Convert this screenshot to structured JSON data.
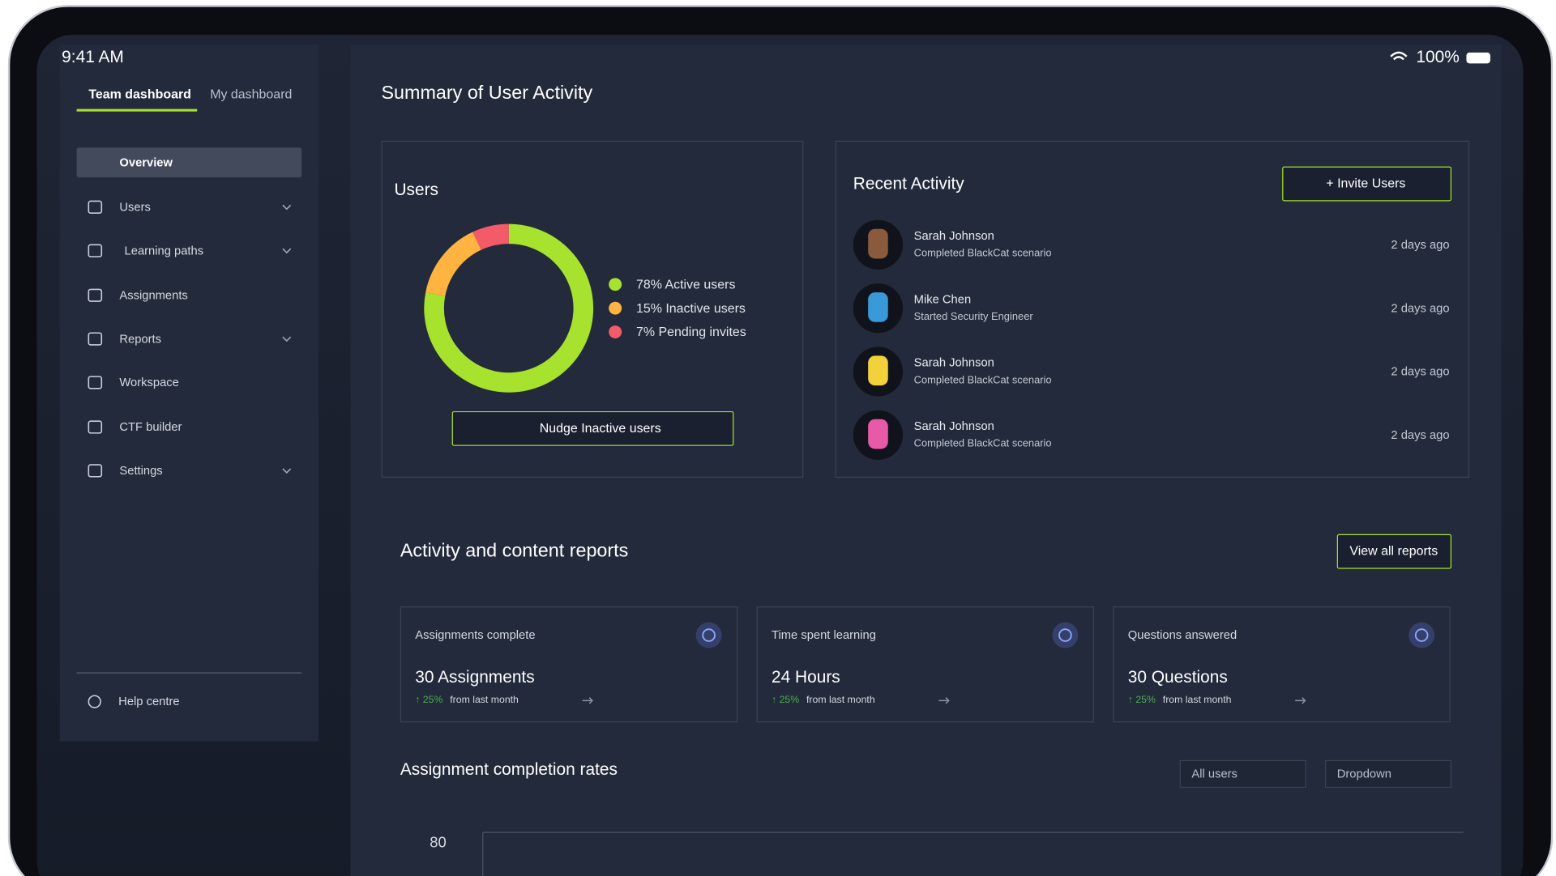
{
  "status": {
    "time": "9:41 AM",
    "battery": "100%"
  },
  "sidebar": {
    "tabs": [
      "Team dashboard",
      "My dashboard"
    ],
    "nav": [
      {
        "label": "Overview",
        "expandable": false
      },
      {
        "label": "Users",
        "expandable": true
      },
      {
        "label": "Learning paths",
        "expandable": true
      },
      {
        "label": "Assignments",
        "expandable": false
      },
      {
        "label": "Reports",
        "expandable": true
      },
      {
        "label": "Workspace",
        "expandable": false
      },
      {
        "label": "CTF builder",
        "expandable": false
      },
      {
        "label": "Settings",
        "expandable": true
      }
    ],
    "help": "Help centre"
  },
  "main": {
    "title": "Summary of User Activity"
  },
  "users": {
    "title": "Users",
    "segments": [
      {
        "label": "78% Active users",
        "value": 78,
        "color": "#a6e22e"
      },
      {
        "label": "15% Inactive users",
        "value": 15,
        "color": "#ffb340"
      },
      {
        "label": "7% Pending invites",
        "value": 7,
        "color": "#f45b69"
      }
    ],
    "button": "Nudge Inactive users"
  },
  "recent": {
    "title": "Recent Activity",
    "button": "+ Invite Users",
    "items": [
      {
        "name": "Sarah Johnson",
        "action": "Completed BlackCat scenario",
        "time": "2 days ago"
      },
      {
        "name": "Mike Chen",
        "action": "Started Security Engineer",
        "time": "2 days ago"
      },
      {
        "name": "Sarah Johnson",
        "action": "Completed BlackCat scenario",
        "time": "2 days ago"
      },
      {
        "name": "Sarah Johnson",
        "action": "Completed BlackCat scenario",
        "time": "2 days ago"
      }
    ]
  },
  "reports": {
    "title": "Activity and content reports",
    "button": "View all reports",
    "cards": [
      {
        "label": "Assignments complete",
        "value": "30 Assignments",
        "change": "↑ 25%",
        "note": "from last month"
      },
      {
        "label": "Time spent learning",
        "value": "24 Hours",
        "change": "↑ 25%",
        "note": "from last month"
      },
      {
        "label": "Questions answered",
        "value": "30 Questions",
        "change": "↑ 25%",
        "note": "from last month"
      }
    ]
  },
  "completion": {
    "title": "Assignment completion rates",
    "filters": [
      "All users",
      "Dropdown"
    ],
    "y_tick": "80"
  }
}
